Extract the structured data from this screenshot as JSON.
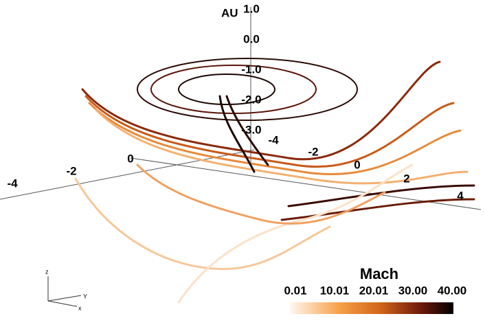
{
  "axis_title": "AU",
  "vertical_axis_labels": [
    "1.0",
    "0.0",
    "-1.0",
    "-2.0",
    "-3.0"
  ],
  "left_axis_labels": [
    "-4",
    "-2",
    "0"
  ],
  "right_axis_labels": [
    "-4",
    "-2",
    "0",
    "2",
    "4"
  ],
  "orientation": {
    "z": "z",
    "y": "Y",
    "x": "x"
  },
  "colorbar": {
    "title": "Mach",
    "ticks": [
      "0.01",
      "10.01",
      "20.01",
      "30.00",
      "40.00"
    ]
  }
}
